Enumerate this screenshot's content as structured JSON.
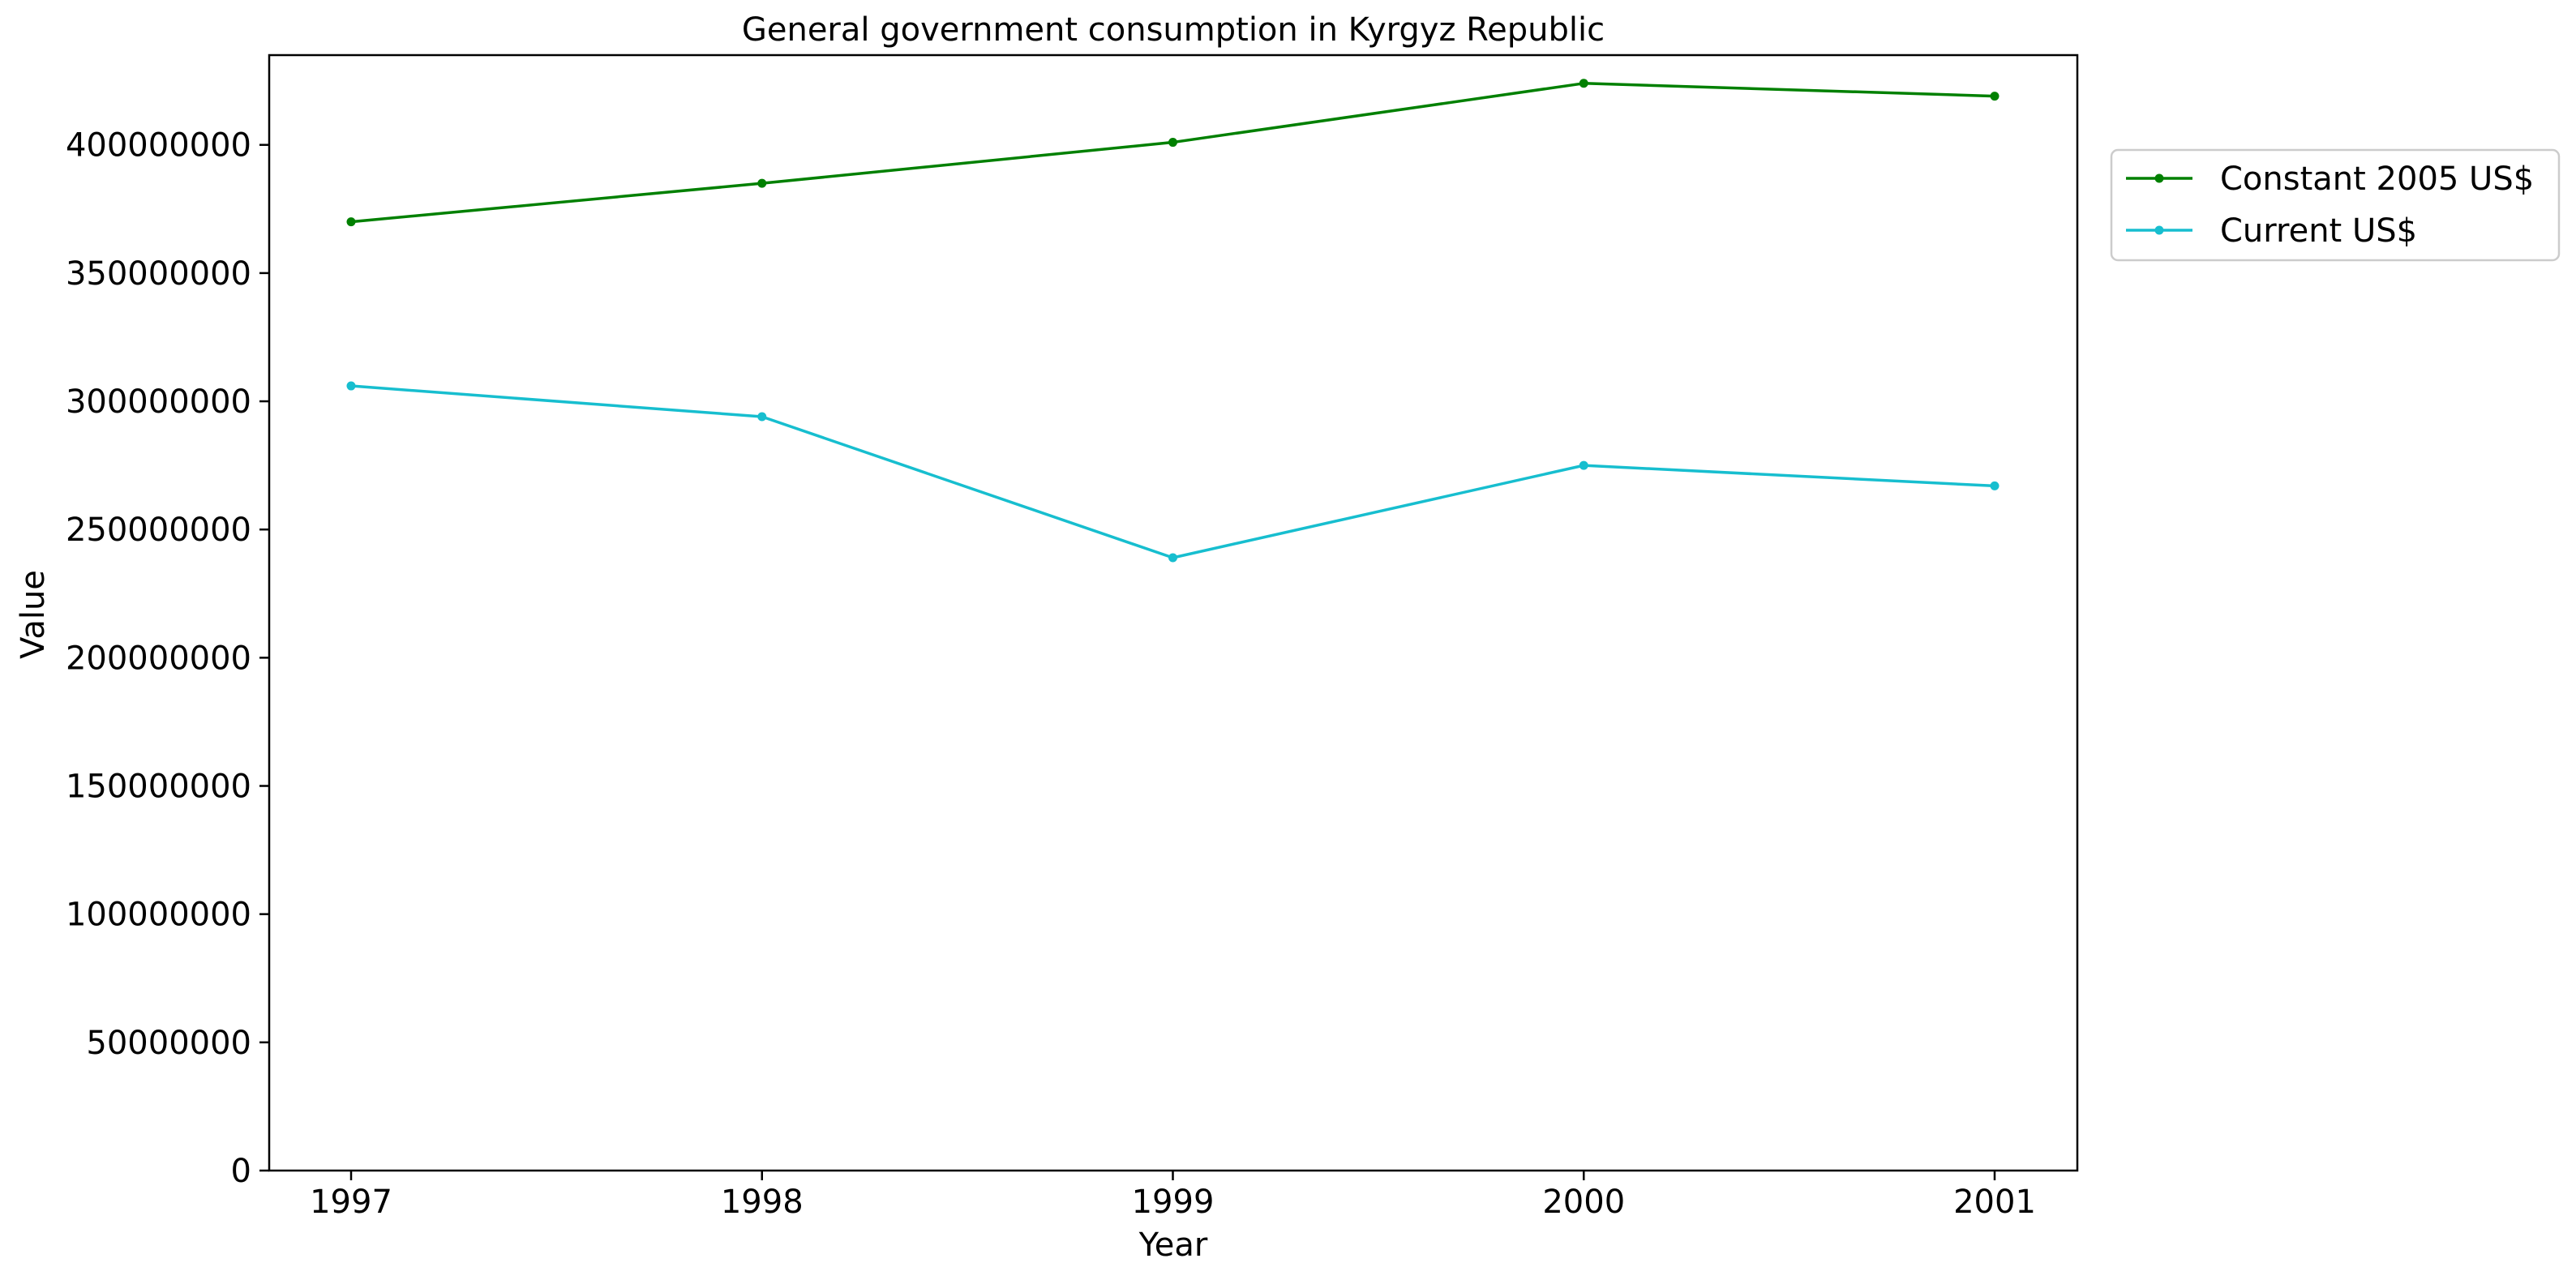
{
  "chart_data": {
    "type": "line",
    "title": "General government consumption in Kyrgyz Republic",
    "xlabel": "Year",
    "ylabel": "Value",
    "x": [
      "1997",
      "1998",
      "1999",
      "2000",
      "2001"
    ],
    "ylim": [
      0,
      435000000
    ],
    "yticks": [
      0,
      50000000,
      100000000,
      150000000,
      200000000,
      250000000,
      300000000,
      350000000,
      400000000
    ],
    "ytick_labels": [
      "0",
      "50000000",
      "100000000",
      "150000000",
      "200000000",
      "250000000",
      "300000000",
      "350000000",
      "400000000"
    ],
    "grid": false,
    "legend": "upper right, outside plot",
    "series": [
      {
        "name": "Constant 2005 US$",
        "color": "#008000",
        "marker": "circle",
        "values": [
          370000000,
          385000000,
          401000000,
          424000000,
          419000000
        ]
      },
      {
        "name": "Current US$",
        "color": "#17becf",
        "marker": "circle",
        "values": [
          306000000,
          294000000,
          239000000,
          275000000,
          267000000
        ]
      }
    ]
  }
}
